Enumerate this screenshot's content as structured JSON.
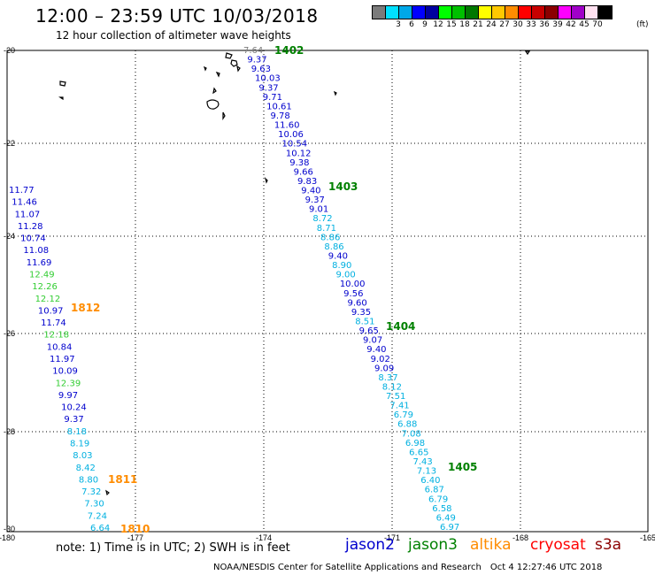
{
  "header": {
    "title": "12:00  –  23:59  UTC  10/03/2018",
    "subtitle": "12 hour collection of altimeter wave heights"
  },
  "colorbar": {
    "colors": [
      "#7b7b7b",
      "#00e0ff",
      "#00a8e8",
      "#0000ff",
      "#0000a0",
      "#00ff00",
      "#00c000",
      "#007800",
      "#ffff00",
      "#ffc800",
      "#ff8c00",
      "#ff0000",
      "#c80000",
      "#8b0000",
      "#ff00ff",
      "#a000c8",
      "#ffe0f0",
      "#000000"
    ],
    "labels": [
      "3",
      "6",
      "9",
      "12",
      "15",
      "18",
      "21",
      "24",
      "27",
      "30",
      "33",
      "36",
      "39",
      "42",
      "45",
      "70"
    ],
    "unit": "(ft)"
  },
  "axes": {
    "x_ticks": [
      "-180",
      "-177",
      "-174",
      "-171",
      "-168",
      "-165"
    ],
    "y_ticks": [
      "-20",
      "-22",
      "-24",
      "-26",
      "-28",
      "-30"
    ]
  },
  "sat_colors": {
    "jason2": "#0000cd",
    "jason3": "#008000",
    "altika": "#ff8c00",
    "cryosat": "#ff0000",
    "s3a": "#8b0000",
    "j3light": "#32cd32",
    "j3cyan": "#00b0e0"
  },
  "time_labels": [
    {
      "text": "1402",
      "color": "#008000"
    },
    {
      "text": "1403",
      "color": "#008000"
    },
    {
      "text": "1404",
      "color": "#008000"
    },
    {
      "text": "1405",
      "color": "#008000"
    },
    {
      "text": "1812",
      "color": "#ff8c00"
    },
    {
      "text": "1811",
      "color": "#ff8c00"
    },
    {
      "text": "1810",
      "color": "#ff8c00"
    }
  ],
  "track_east": [
    {
      "v": "7.64",
      "c": "#7b7b7b"
    },
    {
      "v": "9.37",
      "c": "#0000cd"
    },
    {
      "v": "9.63",
      "c": "#0000cd"
    },
    {
      "v": "10.03",
      "c": "#0000cd"
    },
    {
      "v": "9.37",
      "c": "#0000cd"
    },
    {
      "v": "9.71",
      "c": "#0000cd"
    },
    {
      "v": "10.61",
      "c": "#0000cd"
    },
    {
      "v": "9.78",
      "c": "#0000cd"
    },
    {
      "v": "11.60",
      "c": "#0000cd"
    },
    {
      "v": "10.06",
      "c": "#0000cd"
    },
    {
      "v": "10.54",
      "c": "#0000cd"
    },
    {
      "v": "10.12",
      "c": "#0000cd"
    },
    {
      "v": "9.38",
      "c": "#0000cd"
    },
    {
      "v": "9.66",
      "c": "#0000cd"
    },
    {
      "v": "9.83",
      "c": "#0000cd"
    },
    {
      "v": "9.40",
      "c": "#0000cd"
    },
    {
      "v": "9.37",
      "c": "#0000cd"
    },
    {
      "v": "9.01",
      "c": "#0000cd"
    },
    {
      "v": "8.72",
      "c": "#00b0e0"
    },
    {
      "v": "8.71",
      "c": "#00b0e0"
    },
    {
      "v": "8.86",
      "c": "#00b0e0"
    },
    {
      "v": "8.86",
      "c": "#00b0e0"
    },
    {
      "v": "9.40",
      "c": "#0000cd"
    },
    {
      "v": "8.90",
      "c": "#00b0e0"
    },
    {
      "v": "9.00",
      "c": "#00b0e0"
    },
    {
      "v": "10.00",
      "c": "#0000cd"
    },
    {
      "v": "9.56",
      "c": "#0000cd"
    },
    {
      "v": "9.60",
      "c": "#0000cd"
    },
    {
      "v": "9.35",
      "c": "#0000cd"
    },
    {
      "v": "8.51",
      "c": "#00b0e0"
    },
    {
      "v": "9.65",
      "c": "#0000cd"
    },
    {
      "v": "9.07",
      "c": "#0000cd"
    },
    {
      "v": "9.40",
      "c": "#0000cd"
    },
    {
      "v": "9.02",
      "c": "#0000cd"
    },
    {
      "v": "9.09",
      "c": "#0000cd"
    },
    {
      "v": "8.37",
      "c": "#00b0e0"
    },
    {
      "v": "8.12",
      "c": "#00b0e0"
    },
    {
      "v": "7.51",
      "c": "#00b0e0"
    },
    {
      "v": "7.41",
      "c": "#00b0e0"
    },
    {
      "v": "6.79",
      "c": "#00b0e0"
    },
    {
      "v": "6.88",
      "c": "#00b0e0"
    },
    {
      "v": "7.08",
      "c": "#00b0e0"
    },
    {
      "v": "6.98",
      "c": "#00b0e0"
    },
    {
      "v": "6.65",
      "c": "#00b0e0"
    },
    {
      "v": "7.43",
      "c": "#00b0e0"
    },
    {
      "v": "7.13",
      "c": "#00b0e0"
    },
    {
      "v": "6.40",
      "c": "#00b0e0"
    },
    {
      "v": "6.87",
      "c": "#00b0e0"
    },
    {
      "v": "6.79",
      "c": "#00b0e0"
    },
    {
      "v": "6.58",
      "c": "#00b0e0"
    },
    {
      "v": "6.49",
      "c": "#00b0e0"
    },
    {
      "v": "6.97",
      "c": "#00b0e0"
    }
  ],
  "track_west": [
    {
      "v": "11.77",
      "c": "#0000cd"
    },
    {
      "v": "11.46",
      "c": "#0000cd"
    },
    {
      "v": "11.07",
      "c": "#0000cd"
    },
    {
      "v": "11.28",
      "c": "#0000cd"
    },
    {
      "v": "10.74",
      "c": "#0000cd"
    },
    {
      "v": "11.08",
      "c": "#0000cd"
    },
    {
      "v": "11.69",
      "c": "#0000cd"
    },
    {
      "v": "12.49",
      "c": "#32cd32"
    },
    {
      "v": "12.26",
      "c": "#32cd32"
    },
    {
      "v": "12.12",
      "c": "#32cd32"
    },
    {
      "v": "10.97",
      "c": "#0000cd"
    },
    {
      "v": "11.74",
      "c": "#0000cd"
    },
    {
      "v": "12.18",
      "c": "#32cd32"
    },
    {
      "v": "10.84",
      "c": "#0000cd"
    },
    {
      "v": "11.97",
      "c": "#0000cd"
    },
    {
      "v": "10.09",
      "c": "#0000cd"
    },
    {
      "v": "12.39",
      "c": "#32cd32"
    },
    {
      "v": "9.97",
      "c": "#0000cd"
    },
    {
      "v": "10.24",
      "c": "#0000cd"
    },
    {
      "v": "9.37",
      "c": "#0000cd"
    },
    {
      "v": "8.18",
      "c": "#00b0e0"
    },
    {
      "v": "8.19",
      "c": "#00b0e0"
    },
    {
      "v": "8.03",
      "c": "#00b0e0"
    },
    {
      "v": "8.42",
      "c": "#00b0e0"
    },
    {
      "v": "8.80",
      "c": "#00b0e0"
    },
    {
      "v": "7.32",
      "c": "#00b0e0"
    },
    {
      "v": "7.30",
      "c": "#00b0e0"
    },
    {
      "v": "7.24",
      "c": "#00b0e0"
    },
    {
      "v": "6.64",
      "c": "#00b0e0"
    }
  ],
  "legend": {
    "note": "note:  1) Time is in UTC; 2) SWH is in feet",
    "jason2": "jason2",
    "jason3": "jason3",
    "altika": "altika",
    "cryosat": "cryosat",
    "s3a": "s3a"
  },
  "footer": {
    "org": "NOAA/NESDIS Center for Satellite Applications and Research",
    "date": "Oct  4 12:27:46 UTC 2018"
  }
}
